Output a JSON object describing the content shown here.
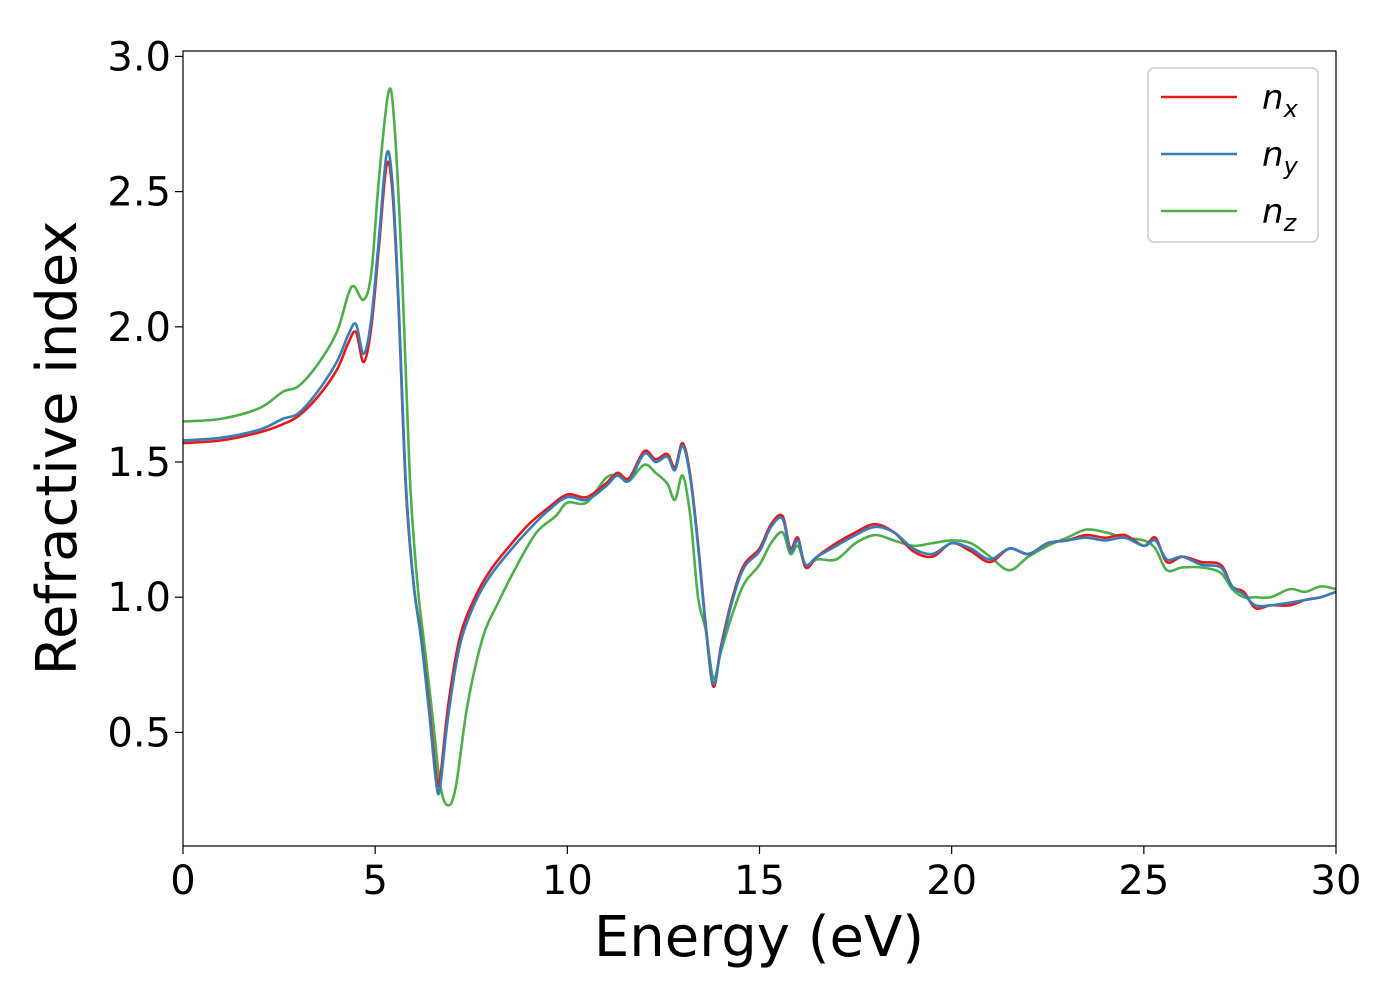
{
  "chart_data": {
    "type": "line",
    "title": "",
    "xlabel": "Energy (eV)",
    "ylabel": "Refractive index",
    "xlim": [
      0,
      30
    ],
    "ylim": [
      0.08,
      3.02
    ],
    "xticks": [
      0,
      5,
      10,
      15,
      20,
      25,
      30
    ],
    "xtick_labels": [
      "0",
      "5",
      "10",
      "15",
      "20",
      "25",
      "30"
    ],
    "yticks": [
      0.5,
      1.0,
      1.5,
      2.0,
      2.5,
      3.0
    ],
    "ytick_labels": [
      "0.5",
      "1.0",
      "1.5",
      "2.0",
      "2.5",
      "3.0"
    ],
    "grid": false,
    "legend_position": "top-right",
    "series": [
      {
        "name": "n_x",
        "label_base": "n",
        "label_sub": "x",
        "color": "#e41a1c",
        "points": [
          [
            0,
            1.57
          ],
          [
            1,
            1.58
          ],
          [
            2,
            1.61
          ],
          [
            2.6,
            1.64
          ],
          [
            3,
            1.67
          ],
          [
            3.5,
            1.74
          ],
          [
            4,
            1.84
          ],
          [
            4.3,
            1.94
          ],
          [
            4.5,
            1.98
          ],
          [
            4.7,
            1.87
          ],
          [
            4.9,
            2.0
          ],
          [
            5.1,
            2.3
          ],
          [
            5.3,
            2.6
          ],
          [
            5.45,
            2.5
          ],
          [
            5.6,
            2.1
          ],
          [
            5.8,
            1.4
          ],
          [
            6.0,
            1.05
          ],
          [
            6.2,
            0.85
          ],
          [
            6.4,
            0.6
          ],
          [
            6.6,
            0.33
          ],
          [
            6.7,
            0.34
          ],
          [
            6.9,
            0.6
          ],
          [
            7.2,
            0.85
          ],
          [
            7.6,
            1.0
          ],
          [
            8,
            1.1
          ],
          [
            8.5,
            1.19
          ],
          [
            9,
            1.27
          ],
          [
            9.5,
            1.33
          ],
          [
            10,
            1.38
          ],
          [
            10.5,
            1.37
          ],
          [
            11,
            1.42
          ],
          [
            11.3,
            1.46
          ],
          [
            11.6,
            1.44
          ],
          [
            12,
            1.54
          ],
          [
            12.3,
            1.51
          ],
          [
            12.6,
            1.53
          ],
          [
            12.8,
            1.48
          ],
          [
            13.0,
            1.57
          ],
          [
            13.2,
            1.45
          ],
          [
            13.4,
            1.2
          ],
          [
            13.6,
            0.9
          ],
          [
            13.8,
            0.67
          ],
          [
            14.0,
            0.82
          ],
          [
            14.3,
            1.0
          ],
          [
            14.6,
            1.12
          ],
          [
            15,
            1.18
          ],
          [
            15.3,
            1.27
          ],
          [
            15.6,
            1.3
          ],
          [
            15.8,
            1.18
          ],
          [
            16,
            1.22
          ],
          [
            16.2,
            1.11
          ],
          [
            16.5,
            1.15
          ],
          [
            17,
            1.2
          ],
          [
            17.5,
            1.24
          ],
          [
            18,
            1.27
          ],
          [
            18.5,
            1.24
          ],
          [
            19,
            1.17
          ],
          [
            19.5,
            1.15
          ],
          [
            20,
            1.2
          ],
          [
            20.5,
            1.17
          ],
          [
            21,
            1.13
          ],
          [
            21.5,
            1.18
          ],
          [
            22,
            1.16
          ],
          [
            22.5,
            1.2
          ],
          [
            23,
            1.21
          ],
          [
            23.5,
            1.23
          ],
          [
            24,
            1.22
          ],
          [
            24.5,
            1.23
          ],
          [
            25,
            1.19
          ],
          [
            25.3,
            1.22
          ],
          [
            25.6,
            1.13
          ],
          [
            26,
            1.15
          ],
          [
            26.5,
            1.13
          ],
          [
            27,
            1.12
          ],
          [
            27.3,
            1.04
          ],
          [
            27.6,
            1.02
          ],
          [
            27.9,
            0.96
          ],
          [
            28.3,
            0.97
          ],
          [
            28.8,
            0.97
          ],
          [
            29.2,
            0.99
          ],
          [
            29.6,
            1.0
          ],
          [
            30,
            1.02
          ]
        ]
      },
      {
        "name": "n_y",
        "label_base": "n",
        "label_sub": "y",
        "color": "#377eb8",
        "points": [
          [
            0,
            1.58
          ],
          [
            1,
            1.59
          ],
          [
            2,
            1.62
          ],
          [
            2.6,
            1.66
          ],
          [
            3,
            1.68
          ],
          [
            3.5,
            1.76
          ],
          [
            4,
            1.87
          ],
          [
            4.3,
            1.97
          ],
          [
            4.5,
            2.01
          ],
          [
            4.7,
            1.9
          ],
          [
            4.9,
            2.03
          ],
          [
            5.1,
            2.33
          ],
          [
            5.3,
            2.64
          ],
          [
            5.45,
            2.53
          ],
          [
            5.6,
            2.12
          ],
          [
            5.8,
            1.42
          ],
          [
            6.0,
            1.05
          ],
          [
            6.2,
            0.84
          ],
          [
            6.4,
            0.58
          ],
          [
            6.6,
            0.3
          ],
          [
            6.7,
            0.31
          ],
          [
            6.9,
            0.56
          ],
          [
            7.2,
            0.82
          ],
          [
            7.6,
            0.98
          ],
          [
            8,
            1.08
          ],
          [
            8.5,
            1.17
          ],
          [
            9,
            1.25
          ],
          [
            9.5,
            1.32
          ],
          [
            10,
            1.37
          ],
          [
            10.5,
            1.36
          ],
          [
            11,
            1.41
          ],
          [
            11.3,
            1.45
          ],
          [
            11.6,
            1.43
          ],
          [
            12,
            1.53
          ],
          [
            12.3,
            1.5
          ],
          [
            12.6,
            1.52
          ],
          [
            12.8,
            1.47
          ],
          [
            13.0,
            1.56
          ],
          [
            13.2,
            1.44
          ],
          [
            13.4,
            1.19
          ],
          [
            13.6,
            0.89
          ],
          [
            13.8,
            0.68
          ],
          [
            14.0,
            0.81
          ],
          [
            14.3,
            0.99
          ],
          [
            14.6,
            1.11
          ],
          [
            15,
            1.17
          ],
          [
            15.3,
            1.26
          ],
          [
            15.6,
            1.29
          ],
          [
            15.8,
            1.17
          ],
          [
            16,
            1.21
          ],
          [
            16.2,
            1.12
          ],
          [
            16.5,
            1.15
          ],
          [
            17,
            1.19
          ],
          [
            17.5,
            1.23
          ],
          [
            18,
            1.26
          ],
          [
            18.5,
            1.24
          ],
          [
            19,
            1.18
          ],
          [
            19.5,
            1.16
          ],
          [
            20,
            1.2
          ],
          [
            20.5,
            1.18
          ],
          [
            21,
            1.14
          ],
          [
            21.5,
            1.18
          ],
          [
            22,
            1.16
          ],
          [
            22.5,
            1.2
          ],
          [
            23,
            1.21
          ],
          [
            23.5,
            1.22
          ],
          [
            24,
            1.21
          ],
          [
            24.5,
            1.22
          ],
          [
            25,
            1.19
          ],
          [
            25.3,
            1.21
          ],
          [
            25.6,
            1.14
          ],
          [
            26,
            1.15
          ],
          [
            26.5,
            1.12
          ],
          [
            27,
            1.11
          ],
          [
            27.3,
            1.04
          ],
          [
            27.6,
            1.01
          ],
          [
            27.9,
            0.97
          ],
          [
            28.3,
            0.97
          ],
          [
            28.8,
            0.98
          ],
          [
            29.2,
            0.99
          ],
          [
            29.6,
            1.0
          ],
          [
            30,
            1.02
          ]
        ]
      },
      {
        "name": "n_z",
        "label_base": "n",
        "label_sub": "z",
        "color": "#4daf4a",
        "points": [
          [
            0,
            1.65
          ],
          [
            1,
            1.66
          ],
          [
            2,
            1.7
          ],
          [
            2.6,
            1.76
          ],
          [
            3,
            1.78
          ],
          [
            3.5,
            1.86
          ],
          [
            4,
            1.98
          ],
          [
            4.3,
            2.12
          ],
          [
            4.45,
            2.15
          ],
          [
            4.7,
            2.1
          ],
          [
            4.9,
            2.2
          ],
          [
            5.1,
            2.55
          ],
          [
            5.35,
            2.87
          ],
          [
            5.5,
            2.75
          ],
          [
            5.7,
            2.2
          ],
          [
            5.9,
            1.45
          ],
          [
            6.1,
            1.05
          ],
          [
            6.3,
            0.8
          ],
          [
            6.5,
            0.55
          ],
          [
            6.7,
            0.3
          ],
          [
            6.9,
            0.23
          ],
          [
            7.1,
            0.3
          ],
          [
            7.4,
            0.6
          ],
          [
            7.8,
            0.85
          ],
          [
            8.2,
            0.98
          ],
          [
            8.7,
            1.12
          ],
          [
            9.2,
            1.24
          ],
          [
            9.7,
            1.3
          ],
          [
            10,
            1.35
          ],
          [
            10.5,
            1.35
          ],
          [
            11,
            1.44
          ],
          [
            11.3,
            1.45
          ],
          [
            11.6,
            1.43
          ],
          [
            12,
            1.49
          ],
          [
            12.3,
            1.46
          ],
          [
            12.6,
            1.42
          ],
          [
            12.8,
            1.36
          ],
          [
            13.0,
            1.45
          ],
          [
            13.2,
            1.3
          ],
          [
            13.4,
            1.0
          ],
          [
            13.6,
            0.88
          ],
          [
            13.8,
            0.7
          ],
          [
            14.0,
            0.8
          ],
          [
            14.3,
            0.94
          ],
          [
            14.6,
            1.05
          ],
          [
            15,
            1.12
          ],
          [
            15.3,
            1.2
          ],
          [
            15.6,
            1.24
          ],
          [
            15.8,
            1.16
          ],
          [
            16,
            1.19
          ],
          [
            16.2,
            1.12
          ],
          [
            16.5,
            1.14
          ],
          [
            17,
            1.14
          ],
          [
            17.5,
            1.2
          ],
          [
            18,
            1.23
          ],
          [
            18.5,
            1.21
          ],
          [
            19,
            1.19
          ],
          [
            19.5,
            1.2
          ],
          [
            20,
            1.21
          ],
          [
            20.5,
            1.2
          ],
          [
            21,
            1.15
          ],
          [
            21.5,
            1.1
          ],
          [
            22,
            1.15
          ],
          [
            22.5,
            1.19
          ],
          [
            23,
            1.22
          ],
          [
            23.5,
            1.25
          ],
          [
            24,
            1.24
          ],
          [
            24.5,
            1.22
          ],
          [
            25,
            1.21
          ],
          [
            25.3,
            1.18
          ],
          [
            25.6,
            1.1
          ],
          [
            26,
            1.11
          ],
          [
            26.5,
            1.11
          ],
          [
            27,
            1.09
          ],
          [
            27.3,
            1.03
          ],
          [
            27.6,
            1.0
          ],
          [
            27.9,
            1.0
          ],
          [
            28.3,
            1.0
          ],
          [
            28.8,
            1.03
          ],
          [
            29.2,
            1.02
          ],
          [
            29.6,
            1.04
          ],
          [
            30,
            1.03
          ]
        ]
      }
    ]
  }
}
